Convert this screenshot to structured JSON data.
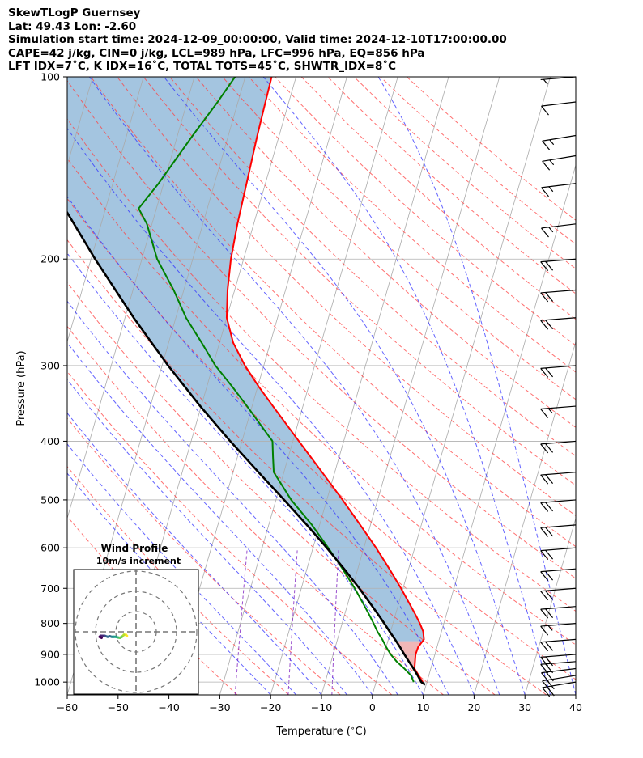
{
  "header": {
    "line1": "SkewTLogP Guernsey",
    "line2": "Lat: 49.43   Lon: -2.60",
    "line3": "Simulation start time: 2024-12-09_00:00:00, Valid time: 2024-12-10T17:00:00.00",
    "line4": "CAPE=42 j/kg, CIN=0 j/kg, LCL=989 hPa, LFC=996 hPa, EQ=856 hPa",
    "line5": "LFT IDX=7˚C, K IDX=16˚C, TOTAL TOTS=45˚C, SHWTR_IDX=8˚C"
  },
  "chart_data": {
    "type": "line",
    "subtype": "skew-T log-P diagram",
    "xlabel": "Temperature ($^\\circ$C)",
    "ylabel": "Pressure (hPa)",
    "xlim": [
      -60,
      40
    ],
    "ylim": [
      1050,
      100
    ],
    "x_ticks": [
      -60,
      -50,
      -40,
      -30,
      -20,
      -10,
      0,
      10,
      20,
      30,
      40
    ],
    "x_tick_labels": [
      "−60",
      "−50",
      "−40",
      "−30",
      "−20",
      "−10",
      "0",
      "10",
      "20",
      "30",
      "40"
    ],
    "y_ticks": [
      1000,
      900,
      800,
      700,
      600,
      500,
      400,
      300,
      200,
      100
    ],
    "y_scale": "log",
    "grid": true,
    "colors": {
      "temperature": "#ff0000",
      "dewpoint": "#008000",
      "parcel": "#000000",
      "cape_fill": "#4a8bc2",
      "cin_fill": "#e06060",
      "isotherms": "#aaaaaa",
      "dry_adiabats": "#ff4040",
      "moist_adiabats": "#3030ff",
      "mixing_ratio": "#8020c0"
    },
    "series": [
      {
        "name": "Temperature",
        "pressure": [
          1000,
          975,
          950,
          925,
          900,
          875,
          850,
          825,
          800,
          775,
          750,
          700,
          650,
          600,
          550,
          500,
          450,
          400,
          350,
          325,
          300,
          275,
          250,
          225,
          200,
          175,
          150,
          125,
          110,
          100
        ],
        "temperature": [
          9.2,
          8.0,
          6.8,
          6.5,
          6.2,
          6.3,
          7.0,
          6.4,
          5.3,
          4.0,
          2.6,
          -0.4,
          -3.8,
          -7.6,
          -12.0,
          -16.9,
          -22.5,
          -28.8,
          -35.9,
          -39.8,
          -43.7,
          -47.3,
          -50.0,
          -51.4,
          -52.5,
          -53.2,
          -53.7,
          -54.3,
          -54.6,
          -54.8
        ]
      },
      {
        "name": "Dewpoint",
        "pressure": [
          1000,
          975,
          950,
          925,
          900,
          875,
          850,
          825,
          800,
          775,
          750,
          700,
          650,
          600,
          550,
          500,
          450,
          425,
          400,
          350,
          325,
          300,
          275,
          250,
          225,
          200,
          175,
          165,
          150,
          125,
          110,
          100
        ],
        "temperature": [
          7.4,
          6.5,
          4.8,
          2.9,
          1.3,
          0.0,
          -1.2,
          -2.6,
          -3.8,
          -5.1,
          -6.5,
          -9.5,
          -13.0,
          -17.0,
          -21.5,
          -27.0,
          -32.0,
          -33.0,
          -34.0,
          -41.0,
          -45.0,
          -49.5,
          -53.5,
          -58.0,
          -62.0,
          -67.0,
          -71.0,
          -73.5,
          -71.0,
          -67.0,
          -64.0,
          -62.0
        ]
      },
      {
        "name": "Parcel",
        "pressure": [
          1010,
          1000,
          975,
          950,
          925,
          900,
          875,
          850,
          825,
          800,
          775,
          750,
          700,
          650,
          600,
          550,
          500,
          450,
          400,
          350,
          300,
          250,
          200,
          150,
          100
        ],
        "temperature": [
          9.8,
          8.9,
          7.8,
          6.6,
          5.3,
          4.0,
          2.7,
          1.3,
          -0.2,
          -1.7,
          -3.3,
          -5.0,
          -8.6,
          -12.7,
          -17.3,
          -22.5,
          -28.4,
          -35.0,
          -42.3,
          -50.2,
          -58.8,
          -68.3,
          -79.2,
          -92.4,
          -109.0
        ]
      }
    ],
    "wind_barbs": {
      "pressure": [
        1000,
        975,
        950,
        925,
        900,
        850,
        800,
        750,
        700,
        650,
        600,
        550,
        500,
        450,
        400,
        350,
        300,
        250,
        225,
        200,
        175,
        150,
        135,
        125,
        110,
        100
      ],
      "speed_kt": [
        20,
        20,
        20,
        20,
        20,
        20,
        15,
        20,
        20,
        20,
        20,
        20,
        20,
        20,
        20,
        15,
        20,
        20,
        20,
        20,
        15,
        15,
        15,
        15,
        10,
        5
      ],
      "direction_deg": [
        250,
        250,
        255,
        260,
        260,
        260,
        260,
        260,
        260,
        260,
        260,
        260,
        260,
        260,
        260,
        260,
        260,
        260,
        260,
        260,
        255,
        255,
        250,
        250,
        255,
        260
      ]
    },
    "inset": {
      "type": "hodograph",
      "title": "Wind Profile",
      "subtitle": "10m/s increment",
      "rings_ms": [
        10,
        20,
        30
      ],
      "points_uv": [
        [
          -4.5,
          -2.0
        ],
        [
          -5.0,
          -1.5
        ],
        [
          -6.0,
          -1.5
        ],
        [
          -7.0,
          -2.5
        ],
        [
          -8.0,
          -3.0
        ],
        [
          -9.0,
          -2.8
        ],
        [
          -10.0,
          -2.5
        ],
        [
          -11.0,
          -2.5
        ],
        [
          -12.0,
          -2.5
        ],
        [
          -13.0,
          -2.2
        ],
        [
          -14.0,
          -2.5
        ],
        [
          -15.5,
          -2.0
        ],
        [
          -16.5,
          -2.0
        ],
        [
          -17.5,
          -2.0
        ],
        [
          -18.0,
          -2.5
        ],
        [
          -17.0,
          -3.0
        ]
      ]
    }
  }
}
